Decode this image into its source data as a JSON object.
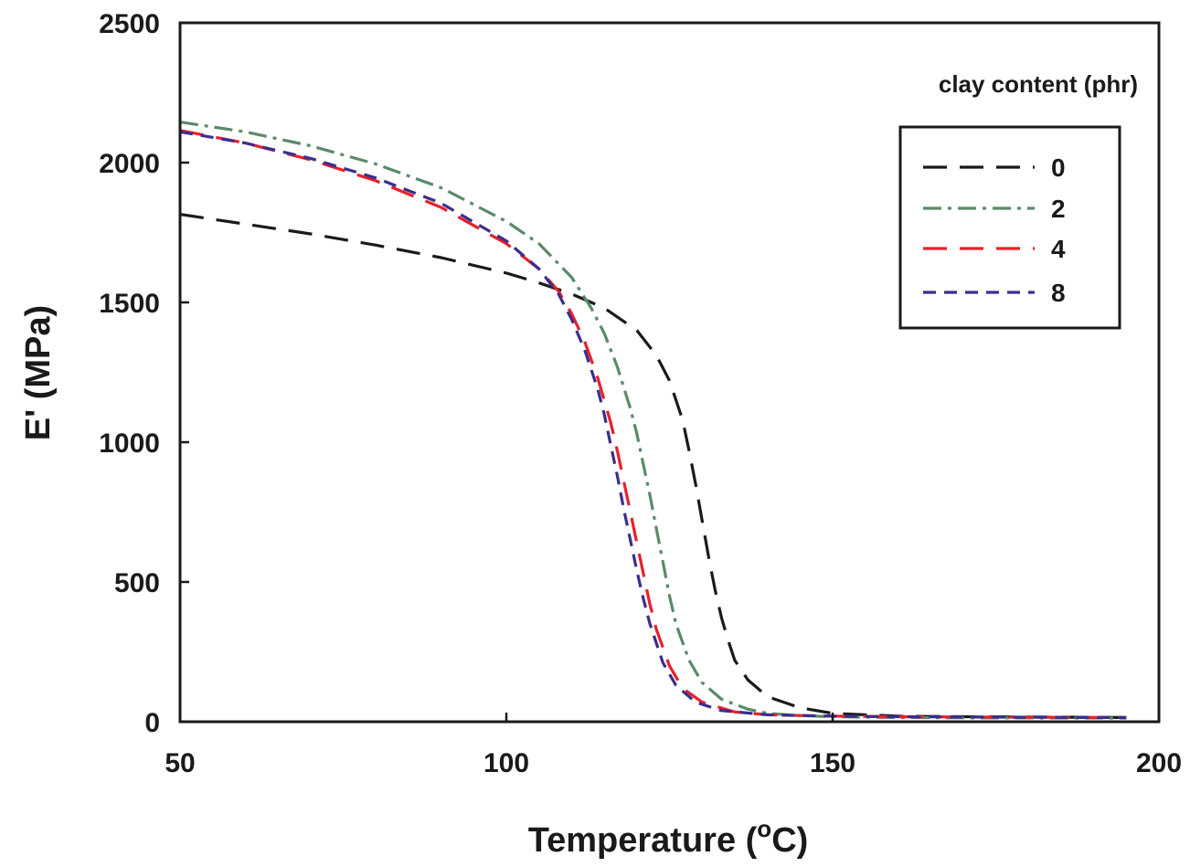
{
  "chart_data": {
    "type": "line",
    "xlabel": "Temperature (",
    "xlabel_sup": "o",
    "xlabel_end": "C)",
    "ylabel": "E' (MPa)",
    "xlim": [
      50,
      200
    ],
    "ylim": [
      0,
      2500
    ],
    "xticks": [
      50,
      100,
      150,
      200
    ],
    "yticks": [
      0,
      500,
      1000,
      1500,
      2000,
      2500
    ],
    "grid": false,
    "legend": {
      "title": "clay content (phr)",
      "placement": "top-right"
    },
    "series": [
      {
        "name": "0",
        "color": "#1a1a1a",
        "dash": "long-dash",
        "x": [
          50,
          60,
          70,
          80,
          90,
          100,
          105,
          110,
          115,
          120,
          123,
          125,
          127,
          128,
          129,
          130,
          131,
          132,
          133,
          134,
          135,
          137,
          140,
          145,
          150,
          160,
          170,
          180,
          195
        ],
        "y": [
          1815,
          1780,
          1745,
          1705,
          1660,
          1605,
          1570,
          1530,
          1480,
          1400,
          1310,
          1220,
          1080,
          970,
          850,
          720,
          590,
          470,
          370,
          290,
          220,
          150,
          90,
          50,
          30,
          20,
          18,
          17,
          15
        ]
      },
      {
        "name": "2",
        "color": "#5a8a6a",
        "dash": "dash-dot",
        "x": [
          50,
          60,
          70,
          80,
          90,
          100,
          105,
          110,
          113,
          115,
          117,
          119,
          120,
          121,
          122,
          123,
          124,
          125,
          126,
          128,
          130,
          133,
          137,
          140,
          145,
          150,
          160,
          170,
          195
        ],
        "y": [
          2145,
          2110,
          2060,
          1995,
          1910,
          1790,
          1710,
          1590,
          1480,
          1390,
          1270,
          1120,
          1030,
          920,
          810,
          690,
          570,
          450,
          350,
          220,
          140,
          80,
          45,
          30,
          22,
          18,
          15,
          14,
          13
        ]
      },
      {
        "name": "4",
        "color": "#e8202a",
        "dash": "long-dash",
        "x": [
          50,
          60,
          70,
          80,
          90,
          100,
          105,
          108,
          110,
          112,
          114,
          116,
          117,
          118,
          119,
          120,
          121,
          122,
          123,
          125,
          127,
          130,
          135,
          140,
          150,
          160,
          170,
          180,
          195
        ],
        "y": [
          2115,
          2070,
          2010,
          1935,
          1840,
          1710,
          1620,
          1540,
          1460,
          1360,
          1230,
          1070,
          970,
          860,
          750,
          640,
          530,
          420,
          330,
          200,
          120,
          70,
          35,
          25,
          20,
          18,
          17,
          16,
          15
        ]
      },
      {
        "name": "8",
        "color": "#3a2e8c",
        "dash": "short-dash",
        "x": [
          50,
          60,
          70,
          80,
          90,
          100,
          105,
          108,
          110,
          112,
          114,
          115,
          116,
          117,
          118,
          119,
          120,
          121,
          122,
          124,
          126,
          129,
          133,
          140,
          150,
          160,
          170,
          180,
          195
        ],
        "y": [
          2110,
          2070,
          2015,
          1945,
          1855,
          1720,
          1620,
          1530,
          1440,
          1330,
          1190,
          1100,
          990,
          880,
          760,
          650,
          540,
          440,
          350,
          210,
          130,
          70,
          40,
          25,
          20,
          18,
          17,
          16,
          15
        ]
      }
    ]
  }
}
